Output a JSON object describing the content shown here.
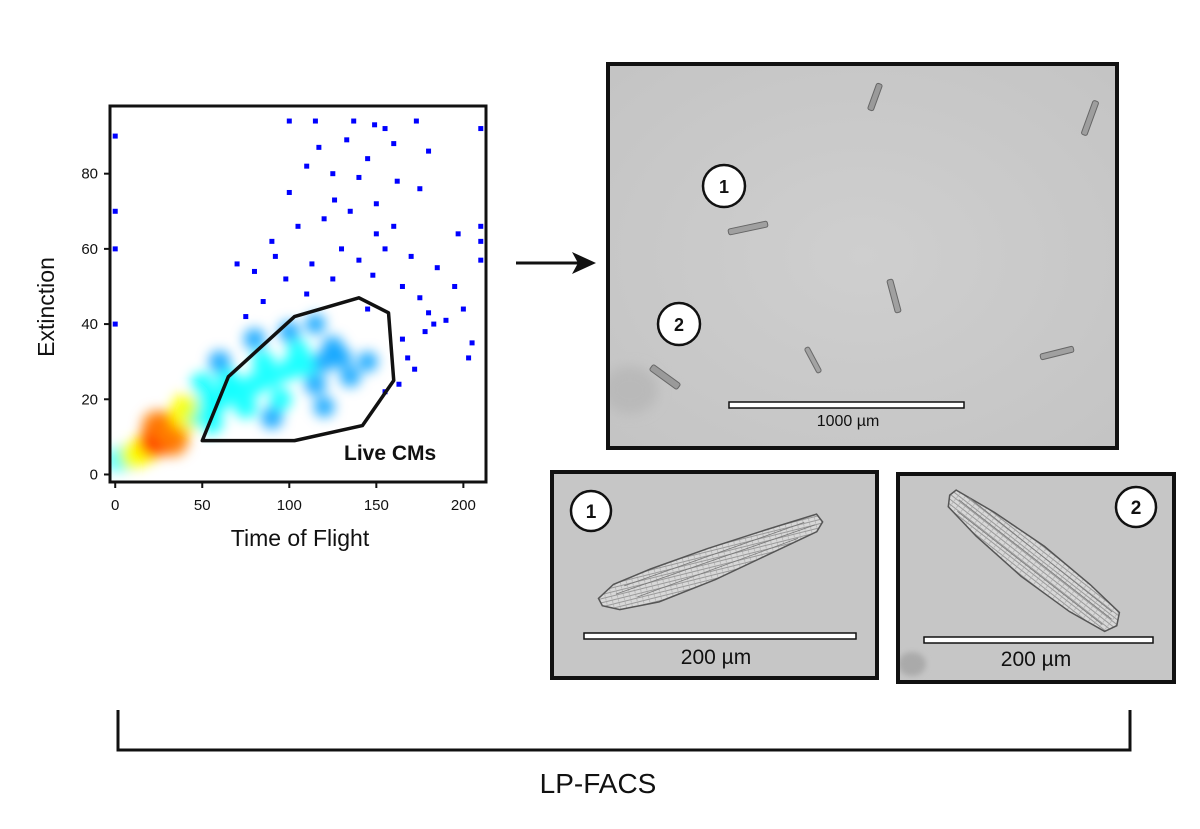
{
  "chart_data": {
    "type": "scatter",
    "xlabel": "Time of Flight",
    "ylabel": "Extinction",
    "xlim": [
      -3,
      213
    ],
    "ylim": [
      -2,
      98
    ],
    "xticks": [
      0,
      50,
      100,
      150,
      200
    ],
    "yticks": [
      0,
      20,
      40,
      60,
      80
    ],
    "colormap": [
      "#0000ff",
      "#00a0ff",
      "#00ffff",
      "#ffff00",
      "#ff8000",
      "#ff0000"
    ],
    "gate": {
      "label": "Live CMs",
      "polygon": [
        [
          50,
          9
        ],
        [
          65,
          26
        ],
        [
          103,
          42
        ],
        [
          140,
          47
        ],
        [
          157,
          43
        ],
        [
          160,
          25
        ],
        [
          142,
          13
        ],
        [
          103,
          9
        ]
      ]
    },
    "density_points": [
      {
        "x": 2,
        "y": 4,
        "d": 0.4
      },
      {
        "x": 6,
        "y": 4.5,
        "d": 0.5
      },
      {
        "x": 10,
        "y": 5,
        "d": 0.55
      },
      {
        "x": 14,
        "y": 6,
        "d": 0.6
      },
      {
        "x": 18,
        "y": 7,
        "d": 0.7
      },
      {
        "x": 22,
        "y": 8.5,
        "d": 0.8
      },
      {
        "x": 26,
        "y": 10,
        "d": 0.95
      },
      {
        "x": 29,
        "y": 11,
        "d": 1.0
      },
      {
        "x": 32,
        "y": 12,
        "d": 0.95
      },
      {
        "x": 35,
        "y": 13,
        "d": 0.85
      },
      {
        "x": 38,
        "y": 14,
        "d": 0.7
      },
      {
        "x": 42,
        "y": 15,
        "d": 0.6
      },
      {
        "x": 46,
        "y": 16.5,
        "d": 0.5
      },
      {
        "x": 52,
        "y": 18,
        "d": 0.45
      },
      {
        "x": 60,
        "y": 20,
        "d": 0.42
      },
      {
        "x": 70,
        "y": 22,
        "d": 0.4
      },
      {
        "x": 80,
        "y": 24,
        "d": 0.4
      },
      {
        "x": 90,
        "y": 26,
        "d": 0.38
      },
      {
        "x": 100,
        "y": 28,
        "d": 0.36
      },
      {
        "x": 110,
        "y": 29,
        "d": 0.33
      },
      {
        "x": 120,
        "y": 30,
        "d": 0.3
      },
      {
        "x": 130,
        "y": 31,
        "d": 0.26
      },
      {
        "x": 24,
        "y": 13,
        "d": 0.75
      },
      {
        "x": 33,
        "y": 9,
        "d": 0.8
      },
      {
        "x": 40,
        "y": 18,
        "d": 0.55
      },
      {
        "x": 55,
        "y": 14,
        "d": 0.45
      },
      {
        "x": 65,
        "y": 25,
        "d": 0.4
      },
      {
        "x": 75,
        "y": 18,
        "d": 0.38
      },
      {
        "x": 85,
        "y": 30,
        "d": 0.36
      },
      {
        "x": 95,
        "y": 20,
        "d": 0.35
      },
      {
        "x": 105,
        "y": 33,
        "d": 0.33
      },
      {
        "x": 115,
        "y": 24,
        "d": 0.3
      },
      {
        "x": 125,
        "y": 34,
        "d": 0.28
      },
      {
        "x": 135,
        "y": 26,
        "d": 0.25
      },
      {
        "x": 145,
        "y": 30,
        "d": 0.22
      },
      {
        "x": 50,
        "y": 24,
        "d": 0.4
      },
      {
        "x": 60,
        "y": 30,
        "d": 0.3
      },
      {
        "x": 80,
        "y": 36,
        "d": 0.28
      },
      {
        "x": 100,
        "y": 38,
        "d": 0.26
      },
      {
        "x": 115,
        "y": 40,
        "d": 0.22
      },
      {
        "x": 90,
        "y": 15,
        "d": 0.3
      },
      {
        "x": 120,
        "y": 18,
        "d": 0.25
      }
    ],
    "outliers": [
      [
        100,
        94
      ],
      [
        115,
        94
      ],
      [
        133,
        89
      ],
      [
        137,
        94
      ],
      [
        149,
        93
      ],
      [
        155,
        92
      ],
      [
        160,
        88
      ],
      [
        173,
        94
      ],
      [
        110,
        82
      ],
      [
        125,
        80
      ],
      [
        145,
        84
      ],
      [
        162,
        78
      ],
      [
        175,
        76
      ],
      [
        150,
        72
      ],
      [
        135,
        70
      ],
      [
        120,
        68
      ],
      [
        105,
        66
      ],
      [
        90,
        62
      ],
      [
        130,
        60
      ],
      [
        155,
        60
      ],
      [
        170,
        58
      ],
      [
        185,
        55
      ],
      [
        195,
        50
      ],
      [
        210,
        66
      ],
      [
        180,
        43
      ],
      [
        200,
        44
      ],
      [
        210,
        62
      ],
      [
        140,
        57
      ],
      [
        113,
        56
      ],
      [
        98,
        52
      ],
      [
        80,
        54
      ],
      [
        70,
        56
      ],
      [
        165,
        50
      ],
      [
        178,
        38
      ],
      [
        190,
        41
      ],
      [
        205,
        35
      ],
      [
        172,
        28
      ],
      [
        183,
        40
      ],
      [
        165,
        36
      ],
      [
        210,
        57
      ],
      [
        210,
        92
      ],
      [
        0,
        40
      ],
      [
        0,
        60
      ],
      [
        0,
        90
      ],
      [
        0,
        70
      ],
      [
        100,
        75
      ],
      [
        92,
        58
      ],
      [
        150,
        64
      ],
      [
        140,
        79
      ],
      [
        163,
        24
      ],
      [
        168,
        31
      ],
      [
        155,
        22
      ],
      [
        148,
        53
      ],
      [
        126,
        73
      ],
      [
        117,
        87
      ],
      [
        180,
        86
      ],
      [
        197,
        64
      ],
      [
        203,
        31
      ],
      [
        175,
        47
      ],
      [
        160,
        66
      ],
      [
        145,
        44
      ],
      [
        85,
        46
      ],
      [
        75,
        42
      ],
      [
        110,
        48
      ],
      [
        125,
        52
      ]
    ]
  },
  "micrograph_main": {
    "scale_label": "1000 µm",
    "markers": [
      "1",
      "2"
    ]
  },
  "micrograph_cell_1": {
    "marker": "1",
    "scale_label": "200 µm"
  },
  "micrograph_cell_2": {
    "marker": "2",
    "scale_label": "200 µm"
  },
  "bracket": {
    "label": "LP-FACS"
  }
}
